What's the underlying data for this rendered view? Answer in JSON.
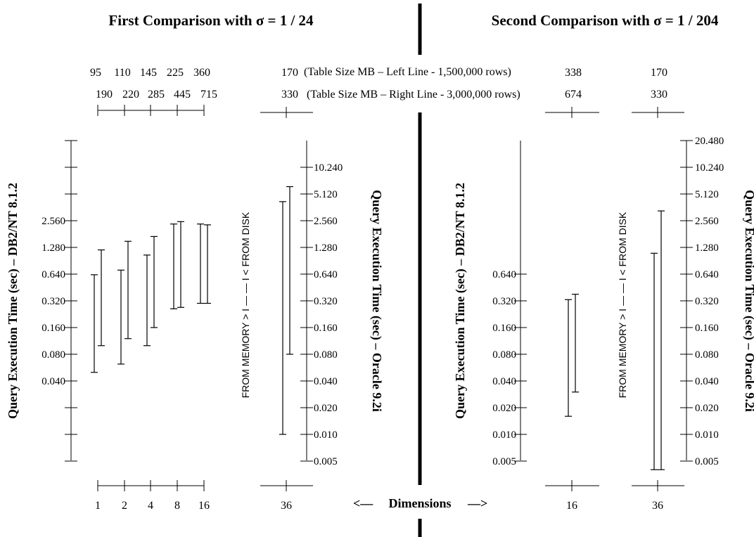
{
  "title_left": "First Comparison with σ = 1 / 24",
  "title_right": "Second Comparison with σ = 1 / 204",
  "size_label_left": "(Table Size MB – Left Line - 1,500,000 rows)",
  "size_label_right": "(Table Size MB – Right Line - 3,000,000 rows)",
  "memory_disk_label": "FROM MEMORY > I — — I < FROM DISK",
  "dimensions_label": "Dimensions",
  "arrow_left": "<—",
  "arrow_right": "—>",
  "chart_data": [
    {
      "type": "range",
      "panel": "first",
      "title": "First Comparison with σ = 1 / 24",
      "ylabel": "Query Execution Time (sec) – DB2/NT 8.1.2",
      "y_scale": "log2",
      "y_ticks": [
        "2.560",
        "1.280",
        "0.640",
        "0.320",
        "0.160",
        "0.080",
        "0.040"
      ],
      "categories": [
        "1",
        "2",
        "4",
        "8",
        "16"
      ],
      "size_left_mb": [
        "95",
        "110",
        "145",
        "225",
        "360"
      ],
      "size_right_mb": [
        "190",
        "220",
        "285",
        "445",
        "715"
      ],
      "series": [
        {
          "name": "Left Line - 1,500,000 rows",
          "low": [
            0.05,
            0.062,
            0.1,
            0.26,
            0.3
          ],
          "high": [
            0.63,
            0.71,
            1.05,
            2.35,
            2.35
          ]
        },
        {
          "name": "Right Line - 3,000,000 rows",
          "low": [
            0.1,
            0.12,
            0.16,
            0.27,
            0.3
          ],
          "high": [
            1.2,
            1.5,
            1.7,
            2.5,
            2.3
          ]
        }
      ]
    },
    {
      "type": "range",
      "panel": "first",
      "ylabel": "Query Execution Time (sec) – Oracle 9.2i",
      "y_scale": "log2",
      "y_ticks": [
        "10.240",
        "5.120",
        "2.560",
        "1.280",
        "0.640",
        "0.320",
        "0.160",
        "0.080",
        "0.040",
        "0.020",
        "0.010",
        "0.005"
      ],
      "categories": [
        "36"
      ],
      "size_left_mb": [
        "170"
      ],
      "size_right_mb": [
        "330"
      ],
      "series": [
        {
          "name": "Left Line - 1,500,000 rows",
          "low": [
            0.01
          ],
          "high": [
            4.2
          ]
        },
        {
          "name": "Right Line - 3,000,000 rows",
          "low": [
            0.08
          ],
          "high": [
            6.2
          ]
        }
      ]
    },
    {
      "type": "range",
      "panel": "second",
      "title": "Second Comparison with σ = 1 / 204",
      "ylabel": "Query Execution Time (sec) – DB2/NT 8.1.2",
      "y_scale": "log2",
      "y_ticks": [
        "0.640",
        "0.320",
        "0.160",
        "0.080",
        "0.040",
        "0.020",
        "0.010",
        "0.005"
      ],
      "categories": [
        "16"
      ],
      "size_left_mb": [
        "338"
      ],
      "size_right_mb": [
        "674"
      ],
      "series": [
        {
          "name": "Left Line - 1,500,000 rows",
          "low": [
            0.016
          ],
          "high": [
            0.33
          ]
        },
        {
          "name": "Right Line - 3,000,000 rows",
          "low": [
            0.03
          ],
          "high": [
            0.38
          ]
        }
      ]
    },
    {
      "type": "range",
      "panel": "second",
      "ylabel": "Query Execution Time (sec) – Oracle 9.2i",
      "y_scale": "log2",
      "y_ticks": [
        "20.480",
        "10.240",
        "5.120",
        "2.560",
        "1.280",
        "0.640",
        "0.320",
        "0.160",
        "0.080",
        "0.040",
        "0.020",
        "0.010",
        "0.005"
      ],
      "categories": [
        "36"
      ],
      "size_left_mb": [
        "170"
      ],
      "size_right_mb": [
        "330"
      ],
      "series": [
        {
          "name": "Left Line - 1,500,000 rows",
          "low": [
            0.004
          ],
          "high": [
            1.1
          ]
        },
        {
          "name": "Right Line - 3,000,000 rows",
          "low": [
            0.004
          ],
          "high": [
            3.3
          ]
        }
      ]
    }
  ]
}
